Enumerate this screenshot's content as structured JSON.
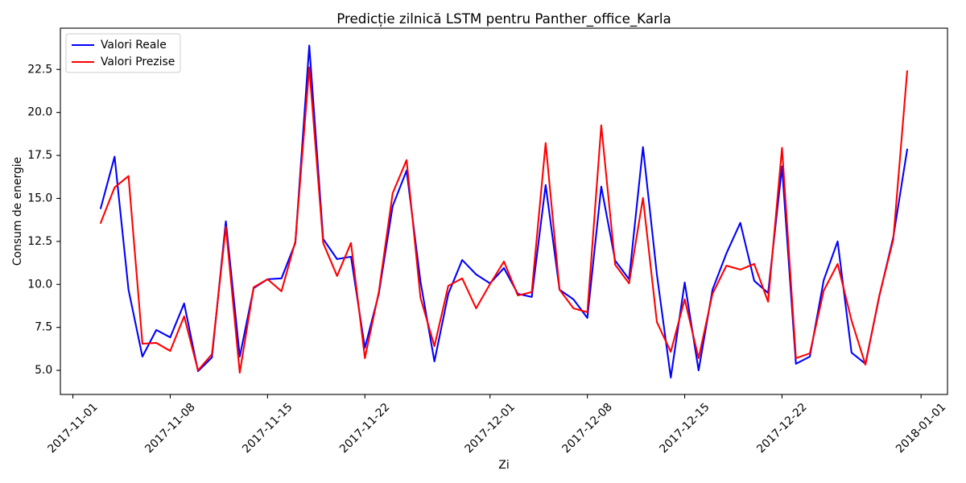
{
  "chart_data": {
    "type": "line",
    "title": "Predicție zilnică LSTM pentru Panther_office_Karla",
    "xlabel": "Zi",
    "ylabel": "Consum de energie",
    "legend": "top-left",
    "grid": false,
    "xlim": [
      "2017-10-31T02:24:00Z",
      "2018-01-02T21:36:00Z"
    ],
    "ylim": [
      3.6,
      24.9
    ],
    "xticks": [
      "2017-11-01",
      "2017-11-08",
      "2017-11-15",
      "2017-11-22",
      "2017-12-01",
      "2017-12-08",
      "2017-12-15",
      "2017-12-22",
      "2018-01-01"
    ],
    "yticks": [
      5.0,
      7.5,
      10.0,
      12.5,
      15.0,
      17.5,
      20.0,
      22.5
    ],
    "ytick_labels": [
      "5.0",
      "7.5",
      "10.0",
      "12.5",
      "15.0",
      "17.5",
      "20.0",
      "22.5"
    ],
    "x": [
      "2017-11-03",
      "2017-11-04",
      "2017-11-05",
      "2017-11-06",
      "2017-11-07",
      "2017-11-08",
      "2017-11-09",
      "2017-11-10",
      "2017-11-11",
      "2017-11-12",
      "2017-11-13",
      "2017-11-14",
      "2017-11-15",
      "2017-11-16",
      "2017-11-17",
      "2017-11-18",
      "2017-11-19",
      "2017-11-20",
      "2017-11-21",
      "2017-11-22",
      "2017-11-23",
      "2017-11-24",
      "2017-11-25",
      "2017-11-26",
      "2017-11-27",
      "2017-11-28",
      "2017-11-29",
      "2017-11-30",
      "2017-12-01",
      "2017-12-02",
      "2017-12-03",
      "2017-12-04",
      "2017-12-05",
      "2017-12-06",
      "2017-12-07",
      "2017-12-08",
      "2017-12-09",
      "2017-12-10",
      "2017-12-11",
      "2017-12-12",
      "2017-12-13",
      "2017-12-14",
      "2017-12-15",
      "2017-12-16",
      "2017-12-17",
      "2017-12-18",
      "2017-12-19",
      "2017-12-20",
      "2017-12-21",
      "2017-12-22",
      "2017-12-23",
      "2017-12-24",
      "2017-12-25",
      "2017-12-26",
      "2017-12-27",
      "2017-12-28",
      "2017-12-29",
      "2017-12-30",
      "2017-12-31"
    ],
    "series": [
      {
        "name": "Valori Reale",
        "color": "#0000ff",
        "values": [
          14.43,
          17.43,
          9.69,
          5.8,
          7.35,
          6.92,
          8.89,
          4.95,
          5.75,
          13.67,
          5.8,
          9.78,
          10.3,
          10.35,
          12.41,
          23.89,
          12.64,
          11.47,
          11.61,
          6.31,
          9.45,
          14.56,
          16.62,
          10.16,
          5.52,
          9.45,
          11.42,
          10.58,
          10.06,
          10.95,
          9.45,
          9.27,
          15.78,
          9.69,
          9.13,
          8.05,
          15.69,
          11.38,
          10.3,
          17.99,
          10.58,
          4.58,
          10.11,
          5.0,
          9.69,
          11.8,
          13.58,
          10.21,
          9.5,
          16.86,
          5.38,
          5.8,
          10.25,
          12.5,
          6.03,
          5.38,
          9.32,
          12.74,
          17.84
        ]
      },
      {
        "name": "Valori Prezise",
        "color": "#ff0000",
        "values": [
          13.58,
          15.64,
          16.3,
          6.55,
          6.6,
          6.13,
          8.14,
          5.0,
          5.94,
          13.35,
          4.86,
          9.83,
          10.3,
          9.6,
          12.5,
          22.63,
          12.41,
          10.49,
          12.41,
          5.71,
          9.55,
          15.31,
          17.23,
          9.22,
          6.41,
          9.92,
          10.35,
          8.61,
          10.02,
          11.33,
          9.36,
          9.55,
          18.22,
          9.69,
          8.61,
          8.38,
          19.25,
          11.14,
          10.06,
          15.03,
          7.81,
          6.08,
          9.13,
          5.71,
          9.45,
          11.09,
          10.86,
          11.19,
          8.99,
          17.94,
          5.71,
          5.99,
          9.64,
          11.19,
          7.9,
          5.33,
          9.36,
          12.6,
          22.39
        ]
      }
    ]
  }
}
